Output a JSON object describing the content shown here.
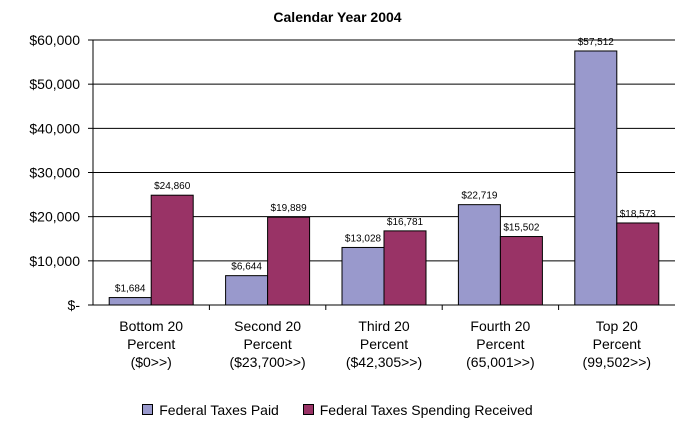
{
  "chart_data": {
    "type": "bar",
    "title": "Calendar Year 2004",
    "xlabel": "",
    "ylabel": "",
    "ylim": [
      0,
      60000
    ],
    "yticks": [
      0,
      10000,
      20000,
      30000,
      40000,
      50000,
      60000
    ],
    "ytick_labels": [
      "$-",
      "$10,000",
      "$20,000",
      "$30,000",
      "$40,000",
      "$50,000",
      "$60,000"
    ],
    "categories": [
      [
        "Bottom 20",
        "Percent",
        "($0>>)"
      ],
      [
        "Second 20",
        "Percent",
        "($23,700>>)"
      ],
      [
        "Third 20",
        "Percent",
        "($42,305>>)"
      ],
      [
        "Fourth 20",
        "Percent",
        "(65,001>>)"
      ],
      [
        "Top 20",
        "Percent",
        "(99,502>>)"
      ]
    ],
    "series": [
      {
        "name": "Federal Taxes Paid",
        "color": "#9999cc",
        "values": [
          1684,
          6644,
          13028,
          22719,
          57512
        ],
        "labels": [
          "$1,684",
          "$6,644",
          "$13,028",
          "$22,719",
          "$57,512"
        ]
      },
      {
        "name": "Federal Taxes Spending Received",
        "color": "#993366",
        "values": [
          24860,
          19889,
          16781,
          15502,
          18573
        ],
        "labels": [
          "$24,860",
          "$19,889",
          "$16,781",
          "$15,502",
          "$18,573"
        ]
      }
    ],
    "grid": true,
    "legend_position": "bottom"
  }
}
